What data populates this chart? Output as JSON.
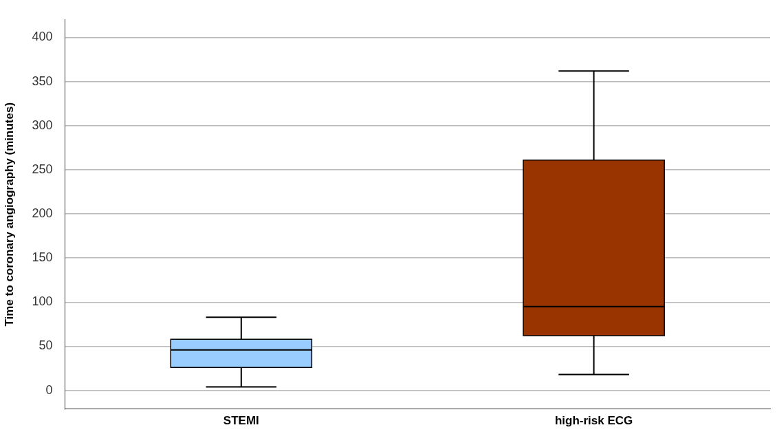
{
  "chart_data": {
    "type": "box",
    "ylabel": "Time to coronary angiography (minutes)",
    "categories": [
      "STEMI",
      "high-risk ECG"
    ],
    "boxes": [
      {
        "low": 4,
        "q1": 26,
        "median": 46,
        "q3": 58,
        "high": 83
      },
      {
        "low": 18,
        "q1": 62,
        "median": 95,
        "q3": 261,
        "high": 362
      }
    ],
    "colors": [
      "#99ccff",
      "#993300"
    ],
    "ylim": [
      -21,
      420
    ],
    "yticks": [
      0,
      50,
      100,
      150,
      200,
      250,
      300,
      350,
      400
    ],
    "grid": "y"
  }
}
